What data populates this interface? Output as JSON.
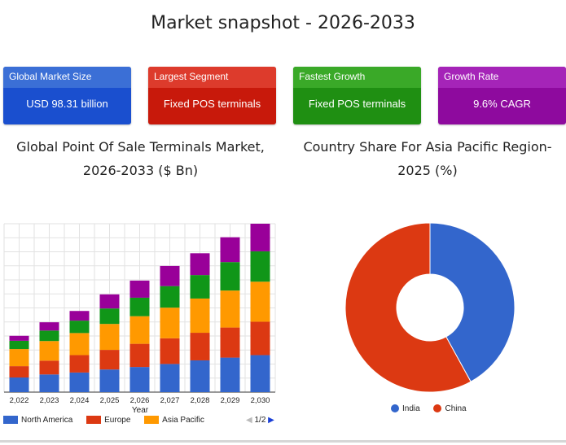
{
  "title": "Market snapshot - 2026-2033",
  "cards": [
    {
      "label": "Global Market Size",
      "value": "USD 98.31 billion",
      "head_color": "#3b6fd6",
      "body_color": "#1a4fcf"
    },
    {
      "label": "Largest Segment",
      "value": "Fixed POS terminals",
      "head_color": "#dd3b2c",
      "body_color": "#c8190b"
    },
    {
      "label": "Fastest Growth",
      "value": "Fixed POS terminals",
      "head_color": "#3aa928",
      "body_color": "#1f8f12"
    },
    {
      "label": "Growth Rate",
      "value": "9.6% CAGR",
      "head_color": "#a524b8",
      "body_color": "#8e0a9e"
    }
  ],
  "bar_chart": {
    "title_line1": "Global Point Of Sale Terminals Market,",
    "title_line2": "2026-2033 ($ Bn)",
    "legend": [
      {
        "name": "North America",
        "color": "#3366cc"
      },
      {
        "name": "Europe",
        "color": "#dc3912"
      },
      {
        "name": "Asia Pacific",
        "color": "#ff9900"
      }
    ],
    "pager": {
      "left": "◀",
      "text": "1/2",
      "right": "▶"
    }
  },
  "donut_chart": {
    "title_line1": "Country Share For Asia Pacific Region-",
    "title_line2": "2025 (%)"
  },
  "chart_data": [
    {
      "type": "bar",
      "stacked": true,
      "xlabel": "Year",
      "ylabel": "",
      "categories": [
        "2,022",
        "2,023",
        "2,024",
        "2,025",
        "2,026",
        "2,027",
        "2,028",
        "2,029",
        "2,030"
      ],
      "series": [
        {
          "name": "North America",
          "color": "#3366cc",
          "values": [
            5.3,
            6.4,
            7.1,
            8.2,
            9.1,
            10.2,
            11.5,
            12.5,
            13.4
          ]
        },
        {
          "name": "Europe",
          "color": "#dc3912",
          "values": [
            4.1,
            5.0,
            6.3,
            7.1,
            8.4,
            9.3,
            10.0,
            10.9,
            12.1
          ]
        },
        {
          "name": "Asia Pacific",
          "color": "#ff9900",
          "values": [
            6.2,
            7.1,
            8.0,
            9.4,
            10.0,
            11.1,
            12.4,
            13.4,
            14.5
          ]
        },
        {
          "values": [
            3.0,
            3.8,
            4.5,
            5.6,
            6.7,
            7.8,
            8.5,
            10.3,
            11.0
          ],
          "color": "#109618"
        },
        {
          "values": [
            1.8,
            3.0,
            3.5,
            5.1,
            6.2,
            7.3,
            7.9,
            9.0,
            10.0
          ],
          "color": "#990099"
        }
      ],
      "ylim": [
        0,
        61
      ],
      "grid": true,
      "legend_position": "bottom"
    },
    {
      "type": "pie",
      "donut": true,
      "labels": [
        "India",
        "China"
      ],
      "values": [
        42,
        58
      ],
      "colors": [
        "#3366cc",
        "#dc3912"
      ],
      "legend_position": "bottom"
    }
  ]
}
